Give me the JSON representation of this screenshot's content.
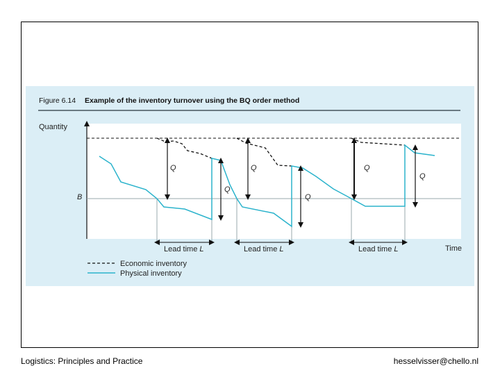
{
  "figure": {
    "number": "Figure 6.14",
    "title": "Example of the inventory turnover using the BQ order method"
  },
  "axes": {
    "y_label": "Quantity",
    "x_label": "Time",
    "reorder_level_label": "B"
  },
  "annotations": {
    "order_quantity_label": "Q",
    "lead_time_label": "Lead time",
    "lead_time_symbol": "L"
  },
  "legend": {
    "economic": "Economic inventory",
    "physical": "Physical inventory"
  },
  "colors": {
    "panel_background": "#dbeef6",
    "plot_background": "#ffffff",
    "physical_line": "#2bb3cc",
    "economic_line": "#111111"
  },
  "footer": {
    "left": "Logistics: Principles and Practice",
    "right": "hesselvisser@chello.nl"
  }
}
